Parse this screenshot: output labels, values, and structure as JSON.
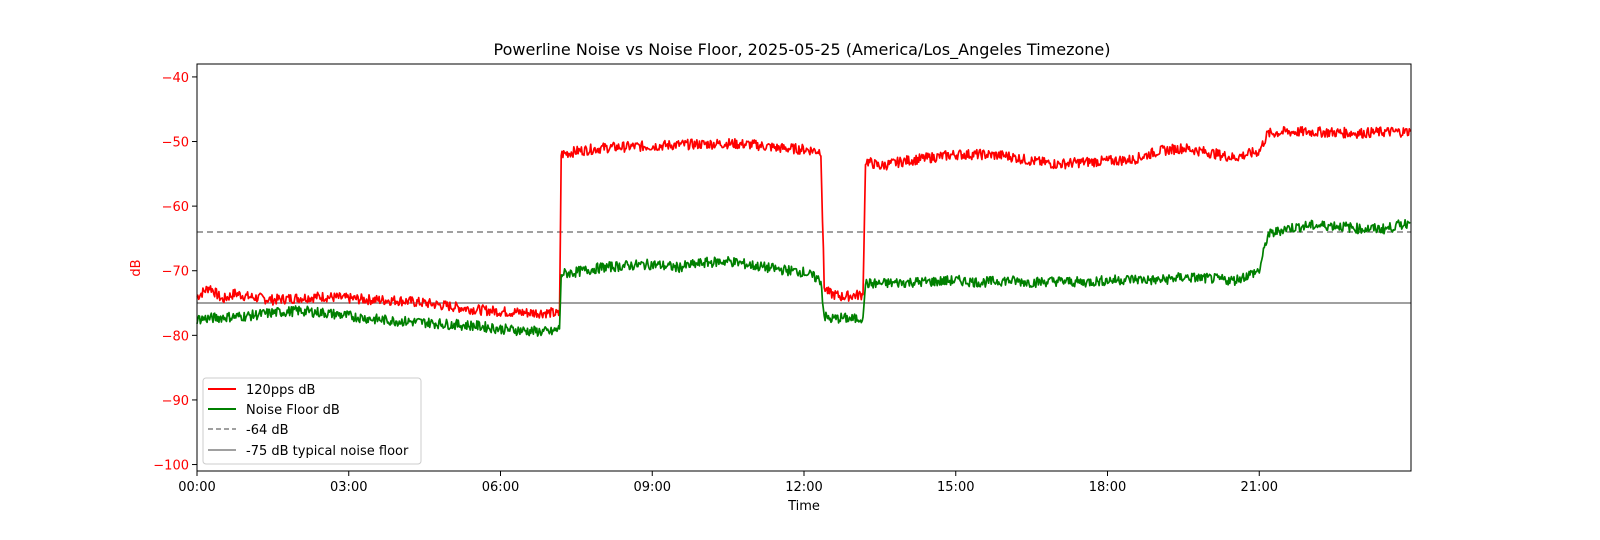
{
  "chart_data": {
    "type": "line",
    "title": "Powerline Noise vs Noise Floor, 2025-05-25 (America/Los_Angeles Timezone)",
    "xlabel": "Time",
    "ylabel": "dB",
    "ylabel_color": "#ff0000",
    "xlim_hours": [
      0,
      24
    ],
    "ylim": [
      -101,
      -38
    ],
    "x_ticks": [
      "00:00",
      "03:00",
      "06:00",
      "09:00",
      "12:00",
      "15:00",
      "18:00",
      "21:00"
    ],
    "y_ticks": [
      -40,
      -50,
      -60,
      -70,
      -80,
      -90,
      -100
    ],
    "y_tick_labels": [
      "−40",
      "−50",
      "−60",
      "−70",
      "−80",
      "−90",
      "−100"
    ],
    "grid": false,
    "legend_position": "lower-left",
    "series": [
      {
        "name": "120pps dB",
        "color": "#ff0000",
        "style": "solid",
        "points": [
          [
            "00:00",
            -74
          ],
          [
            "00:15",
            -72.5
          ],
          [
            "00:30",
            -74.5
          ],
          [
            "00:45",
            -73.5
          ],
          [
            "01:00",
            -74
          ],
          [
            "01:30",
            -74.5
          ],
          [
            "02:00",
            -74.2
          ],
          [
            "02:30",
            -74
          ],
          [
            "03:00",
            -74.3
          ],
          [
            "03:30",
            -74.5
          ],
          [
            "04:00",
            -74.6
          ],
          [
            "04:30",
            -75
          ],
          [
            "05:00",
            -75.5
          ],
          [
            "05:30",
            -76
          ],
          [
            "06:00",
            -76.3
          ],
          [
            "06:30",
            -76.5
          ],
          [
            "07:00",
            -76.5
          ],
          [
            "07:10",
            -76.8
          ],
          [
            "07:12",
            -52
          ],
          [
            "07:30",
            -51.5
          ],
          [
            "08:00",
            -51
          ],
          [
            "08:30",
            -50.8
          ],
          [
            "09:00",
            -50.7
          ],
          [
            "09:30",
            -50.5
          ],
          [
            "10:00",
            -50.4
          ],
          [
            "10:30",
            -50.3
          ],
          [
            "11:00",
            -50.5
          ],
          [
            "11:30",
            -51
          ],
          [
            "12:00",
            -51.2
          ],
          [
            "12:20",
            -51.5
          ],
          [
            "12:24",
            -72.5
          ],
          [
            "12:30",
            -73.5
          ],
          [
            "12:45",
            -74
          ],
          [
            "13:00",
            -73.8
          ],
          [
            "13:10",
            -73.7
          ],
          [
            "13:13",
            -53
          ],
          [
            "13:30",
            -53.8
          ],
          [
            "14:00",
            -53
          ],
          [
            "14:30",
            -52.5
          ],
          [
            "15:00",
            -52
          ],
          [
            "15:30",
            -52
          ],
          [
            "16:00",
            -52.2
          ],
          [
            "16:30",
            -53
          ],
          [
            "17:00",
            -53.5
          ],
          [
            "17:30",
            -53.2
          ],
          [
            "18:00",
            -53
          ],
          [
            "18:30",
            -52.8
          ],
          [
            "19:00",
            -51.5
          ],
          [
            "19:30",
            -51
          ],
          [
            "20:00",
            -51.7
          ],
          [
            "20:30",
            -52.5
          ],
          [
            "21:00",
            -51.5
          ],
          [
            "21:10",
            -48.8
          ],
          [
            "21:30",
            -48.5
          ],
          [
            "22:00",
            -48.5
          ],
          [
            "22:30",
            -48.6
          ],
          [
            "23:00",
            -48.7
          ],
          [
            "23:30",
            -48.5
          ],
          [
            "23:59",
            -48.5
          ]
        ]
      },
      {
        "name": "Noise Floor dB",
        "color": "#008000",
        "style": "solid",
        "points": [
          [
            "00:00",
            -77.5
          ],
          [
            "00:30",
            -77.2
          ],
          [
            "01:00",
            -77
          ],
          [
            "01:30",
            -76.5
          ],
          [
            "02:00",
            -76.2
          ],
          [
            "02:30",
            -76.5
          ],
          [
            "03:00",
            -77
          ],
          [
            "03:30",
            -77.5
          ],
          [
            "04:00",
            -77.8
          ],
          [
            "04:30",
            -78
          ],
          [
            "05:00",
            -78.3
          ],
          [
            "05:30",
            -78.5
          ],
          [
            "06:00",
            -79
          ],
          [
            "06:30",
            -79.3
          ],
          [
            "07:00",
            -79.5
          ],
          [
            "07:10",
            -79
          ],
          [
            "07:12",
            -70.5
          ],
          [
            "07:30",
            -70.2
          ],
          [
            "08:00",
            -69.5
          ],
          [
            "08:30",
            -69.2
          ],
          [
            "09:00",
            -69
          ],
          [
            "09:30",
            -69.5
          ],
          [
            "10:00",
            -68.8
          ],
          [
            "10:30",
            -68.5
          ],
          [
            "11:00",
            -69.2
          ],
          [
            "11:30",
            -69.8
          ],
          [
            "12:00",
            -70.2
          ],
          [
            "12:20",
            -71.5
          ],
          [
            "12:24",
            -77
          ],
          [
            "12:30",
            -77.5
          ],
          [
            "12:45",
            -77.3
          ],
          [
            "13:00",
            -77.5
          ],
          [
            "13:10",
            -77.2
          ],
          [
            "13:13",
            -72
          ],
          [
            "13:30",
            -72
          ],
          [
            "14:00",
            -71.8
          ],
          [
            "14:30",
            -71.7
          ],
          [
            "15:00",
            -71.5
          ],
          [
            "15:30",
            -71.8
          ],
          [
            "16:00",
            -71.5
          ],
          [
            "16:30",
            -71.8
          ],
          [
            "17:00",
            -71.6
          ],
          [
            "17:30",
            -71.8
          ],
          [
            "18:00",
            -71.5
          ],
          [
            "18:30",
            -71.3
          ],
          [
            "19:00",
            -71.5
          ],
          [
            "19:30",
            -71
          ],
          [
            "20:00",
            -71.2
          ],
          [
            "20:30",
            -71.5
          ],
          [
            "21:00",
            -70
          ],
          [
            "21:10",
            -64.5
          ],
          [
            "21:30",
            -63.5
          ],
          [
            "22:00",
            -63
          ],
          [
            "22:30",
            -63
          ],
          [
            "23:00",
            -63.5
          ],
          [
            "23:30",
            -63.5
          ],
          [
            "23:59",
            -62.5
          ]
        ]
      }
    ],
    "reference_lines": [
      {
        "name": "-64 dB",
        "value": -64,
        "color": "#808080",
        "style": "dashed"
      },
      {
        "name": "-75 dB typical noise floor",
        "value": -75,
        "color": "#808080",
        "style": "solid"
      }
    ]
  }
}
